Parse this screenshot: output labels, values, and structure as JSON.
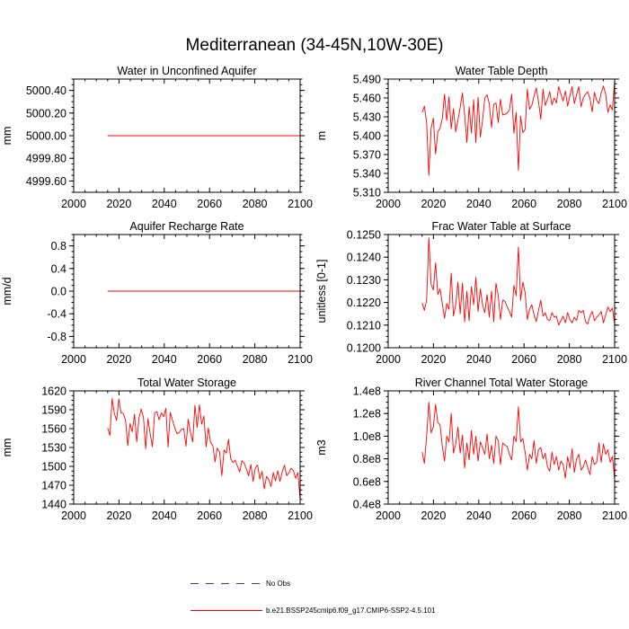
{
  "title": "Mediterranean (34-45N,10W-30E)",
  "legend": {
    "obs_label": "No Obs",
    "obs_color": "#3a3aa8",
    "model_label": "b.e21.BSSP245cmip6.f09_g17.CMIP6-SSP2-4.5.101",
    "model_color": "#ff0000"
  },
  "chart_data": [
    {
      "type": "line",
      "title": "Water in Unconfined Aquifer",
      "ylabel": "mm",
      "xlim": [
        2000,
        2100
      ],
      "xticks": [
        2000,
        2020,
        2040,
        2060,
        2080,
        2100
      ],
      "xtick_labels": [
        "2000",
        "2020",
        "2040",
        "2060",
        "2080",
        "2100"
      ],
      "ylim": [
        4999.5,
        5000.5
      ],
      "yticks": [
        4999.6,
        4999.8,
        5000.0,
        5000.2,
        5000.4
      ],
      "ytick_labels": [
        "4999.60",
        "4999.80",
        "5000.00",
        "5000.20",
        "5000.40"
      ],
      "series": [
        {
          "name": "b.e21.BSSP245cmip6.f09_g17.CMIP6-SSP2-4.5.101",
          "x_start": 2015,
          "x_end": 2100,
          "values": [
            5000.0,
            5000.0
          ]
        }
      ]
    },
    {
      "type": "line",
      "title": "Water Table Depth",
      "ylabel": "m",
      "xlim": [
        2000,
        2100
      ],
      "xticks": [
        2000,
        2020,
        2040,
        2060,
        2080,
        2100
      ],
      "xtick_labels": [
        "2000",
        "2020",
        "2040",
        "2060",
        "2080",
        "2100"
      ],
      "ylim": [
        5.31,
        5.49
      ],
      "yticks": [
        5.31,
        5.34,
        5.37,
        5.4,
        5.43,
        5.46,
        5.49
      ],
      "ytick_labels": [
        "5.310",
        "5.340",
        "5.370",
        "5.400",
        "5.430",
        "5.460",
        "5.490"
      ],
      "series": [
        {
          "name": "b.e21.BSSP245cmip6.f09_g17.CMIP6-SSP2-4.5.101",
          "x_start": 2015,
          "x_end": 2100,
          "values": [
            5.437,
            5.447,
            5.421,
            5.337,
            5.412,
            5.428,
            5.371,
            5.406,
            5.412,
            5.427,
            5.466,
            5.424,
            5.462,
            5.411,
            5.443,
            5.406,
            5.425,
            5.445,
            5.468,
            5.432,
            5.389,
            5.446,
            5.404,
            5.457,
            5.389,
            5.461,
            5.398,
            5.425,
            5.46,
            5.465,
            5.451,
            5.413,
            5.45,
            5.452,
            5.421,
            5.458,
            5.433,
            5.434,
            5.436,
            5.441,
            5.466,
            5.404,
            5.437,
            5.345,
            5.431,
            5.405,
            5.41,
            5.474,
            5.442,
            5.448,
            5.463,
            5.476,
            5.454,
            5.426,
            5.474,
            5.448,
            5.458,
            5.47,
            5.449,
            5.46,
            5.452,
            5.478,
            5.466,
            5.455,
            5.471,
            5.447,
            5.463,
            5.478,
            5.451,
            5.465,
            5.478,
            5.446,
            5.46,
            5.466,
            5.47,
            5.459,
            5.438,
            5.469,
            5.456,
            5.451,
            5.468,
            5.479,
            5.466,
            5.437,
            5.449,
            5.441,
            5.487
          ]
        }
      ]
    },
    {
      "type": "line",
      "title": "Aquifer Recharge Rate",
      "ylabel": "mm/d",
      "xlim": [
        2000,
        2100
      ],
      "xticks": [
        2000,
        2020,
        2040,
        2060,
        2080,
        2100
      ],
      "xtick_labels": [
        "2000",
        "2020",
        "2040",
        "2060",
        "2080",
        "2100"
      ],
      "ylim": [
        -1.0,
        1.0
      ],
      "yticks": [
        -0.8,
        -0.4,
        0.0,
        0.4,
        0.8
      ],
      "ytick_labels": [
        "-0.8",
        "-0.4",
        "0.0",
        "0.4",
        "0.8"
      ],
      "series": [
        {
          "name": "b.e21.BSSP245cmip6.f09_g17.CMIP6-SSP2-4.5.101",
          "x_start": 2015,
          "x_end": 2100,
          "values": [
            0.0,
            0.0
          ]
        }
      ]
    },
    {
      "type": "line",
      "title": "Frac Water Table at Surface",
      "ylabel": "unitless [0-1]",
      "xlim": [
        2000,
        2100
      ],
      "xticks": [
        2000,
        2020,
        2040,
        2060,
        2080,
        2100
      ],
      "xtick_labels": [
        "2000",
        "2020",
        "2040",
        "2060",
        "2080",
        "2100"
      ],
      "ylim": [
        0.12,
        0.125
      ],
      "yticks": [
        0.12,
        0.121,
        0.122,
        0.123,
        0.124,
        0.125
      ],
      "ytick_labels": [
        "0.1200",
        "0.1210",
        "0.1220",
        "0.1230",
        "0.1240",
        "0.1250"
      ],
      "series": [
        {
          "name": "b.e21.BSSP245cmip6.f09_g17.CMIP6-SSP2-4.5.101",
          "x_start": 2015,
          "x_end": 2100,
          "values": [
            0.12198,
            0.12165,
            0.1221,
            0.12485,
            0.1228,
            0.12255,
            0.12375,
            0.12235,
            0.1226,
            0.12195,
            0.1213,
            0.12195,
            0.1217,
            0.1233,
            0.1214,
            0.1219,
            0.1229,
            0.1215,
            0.12285,
            0.12115,
            0.1225,
            0.1212,
            0.1227,
            0.1219,
            0.1231,
            0.1216,
            0.1226,
            0.1219,
            0.12155,
            0.12235,
            0.12135,
            0.1225,
            0.12115,
            0.12285,
            0.1223,
            0.12125,
            0.1221,
            0.12205,
            0.1218,
            0.1216,
            0.12135,
            0.12275,
            0.1223,
            0.12445,
            0.1221,
            0.1229,
            0.12245,
            0.12125,
            0.1217,
            0.1219,
            0.12145,
            0.12115,
            0.12165,
            0.1221,
            0.1214,
            0.12155,
            0.12125,
            0.1212,
            0.12155,
            0.12135,
            0.1214,
            0.121,
            0.1212,
            0.1214,
            0.1211,
            0.12155,
            0.12125,
            0.1211,
            0.12135,
            0.1212,
            0.12165,
            0.12155,
            0.12165,
            0.12115,
            0.12105,
            0.1214,
            0.1216,
            0.1212,
            0.12135,
            0.12145,
            0.1216,
            0.1211,
            0.12145,
            0.1218,
            0.1216,
            0.12175,
            0.12105
          ]
        }
      ]
    },
    {
      "type": "line",
      "title": "Total Water Storage",
      "ylabel": "mm",
      "xlim": [
        2000,
        2100
      ],
      "xticks": [
        2000,
        2020,
        2040,
        2060,
        2080,
        2100
      ],
      "xtick_labels": [
        "2000",
        "2020",
        "2040",
        "2060",
        "2080",
        "2100"
      ],
      "ylim": [
        1440,
        1620
      ],
      "yticks": [
        1440,
        1470,
        1500,
        1530,
        1560,
        1590,
        1620
      ],
      "ytick_labels": [
        "1440",
        "1470",
        "1500",
        "1530",
        "1560",
        "1590",
        "1620"
      ],
      "series": [
        {
          "name": "b.e21.BSSP245cmip6.f09_g17.CMIP6-SSP2-4.5.101",
          "x_start": 2015,
          "x_end": 2100,
          "values": [
            1561,
            1549,
            1608,
            1584,
            1573,
            1607,
            1585,
            1584,
            1573,
            1533,
            1568,
            1555,
            1583,
            1539,
            1577,
            1591,
            1578,
            1528,
            1576,
            1552,
            1531,
            1585,
            1587,
            1574,
            1585,
            1579,
            1592,
            1531,
            1586,
            1573,
            1561,
            1552,
            1554,
            1559,
            1560,
            1532,
            1575,
            1554,
            1539,
            1597,
            1562,
            1598,
            1567,
            1580,
            1531,
            1561,
            1538,
            1533,
            1507,
            1529,
            1523,
            1485,
            1526,
            1521,
            1543,
            1512,
            1506,
            1510,
            1500,
            1491,
            1509,
            1505,
            1496,
            1485,
            1503,
            1476,
            1498,
            1502,
            1480,
            1492,
            1464,
            1484,
            1479,
            1468,
            1490,
            1477,
            1493,
            1476,
            1491,
            1502,
            1485,
            1490,
            1497,
            1493,
            1481,
            1490,
            1447
          ]
        }
      ]
    },
    {
      "type": "line",
      "title": "River Channel Total Water Storage",
      "ylabel": "m3",
      "xlim": [
        2000,
        2100
      ],
      "xticks": [
        2000,
        2020,
        2040,
        2060,
        2080,
        2100
      ],
      "xtick_labels": [
        "2000",
        "2020",
        "2040",
        "2060",
        "2080",
        "2100"
      ],
      "ylim": [
        40000000,
        140000000
      ],
      "yticks": [
        40000000,
        60000000,
        80000000,
        100000000,
        120000000,
        140000000
      ],
      "ytick_labels": [
        "0.4e8",
        "0.6e8",
        "0.8e8",
        "1.0e8",
        "1.2e8",
        "1.4e8"
      ],
      "series": [
        {
          "name": "b.e21.BSSP245cmip6.f09_g17.CMIP6-SSP2-4.5.101",
          "x_start": 2015,
          "x_end": 2100,
          "values": [
            86000000,
            76000000,
            100000000,
            130000000,
            103000000,
            108000000,
            128000000,
            112000000,
            110000000,
            91000000,
            78000000,
            100000000,
            95000000,
            120000000,
            85000000,
            93000000,
            108000000,
            85000000,
            101000000,
            72000000,
            94000000,
            79000000,
            105000000,
            84000000,
            100000000,
            78000000,
            95000000,
            90000000,
            84000000,
            102000000,
            80000000,
            92000000,
            76000000,
            100000000,
            96000000,
            75000000,
            94000000,
            92000000,
            91000000,
            84000000,
            79000000,
            100000000,
            95000000,
            126000000,
            95000000,
            98000000,
            86000000,
            70000000,
            84000000,
            80000000,
            96000000,
            76000000,
            88000000,
            90000000,
            80000000,
            85000000,
            73000000,
            69000000,
            86000000,
            75000000,
            82000000,
            70000000,
            78000000,
            75000000,
            63000000,
            82000000,
            72000000,
            89000000,
            68000000,
            80000000,
            84000000,
            70000000,
            73000000,
            79000000,
            72000000,
            66000000,
            82000000,
            75000000,
            77000000,
            94000000,
            77000000,
            93000000,
            84000000,
            88000000,
            77000000,
            82000000,
            62000000
          ]
        }
      ]
    }
  ]
}
